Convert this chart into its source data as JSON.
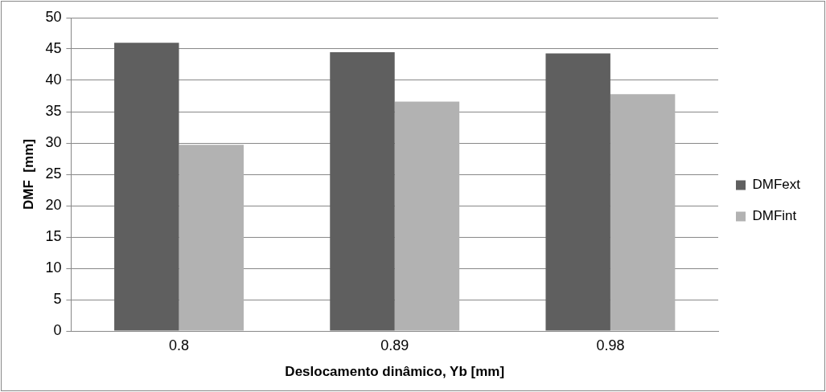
{
  "chart_data": {
    "type": "bar",
    "xlabel": "Deslocamento dinâmico, Yb [mm]",
    "ylabel": "DMF  [mm]",
    "categories": [
      "0.8",
      "0.89",
      "0.98"
    ],
    "series": [
      {
        "name": "DMFext",
        "color": "#5f5f5f",
        "values": [
          46.0,
          44.5,
          44.3
        ]
      },
      {
        "name": "DMFint",
        "color": "#b2b2b2",
        "values": [
          29.7,
          36.6,
          37.8
        ]
      }
    ],
    "ylim": [
      0,
      50
    ],
    "yticks": [
      0,
      5,
      10,
      15,
      20,
      25,
      30,
      35,
      40,
      45,
      50
    ],
    "grid": "y",
    "legend": "right"
  }
}
